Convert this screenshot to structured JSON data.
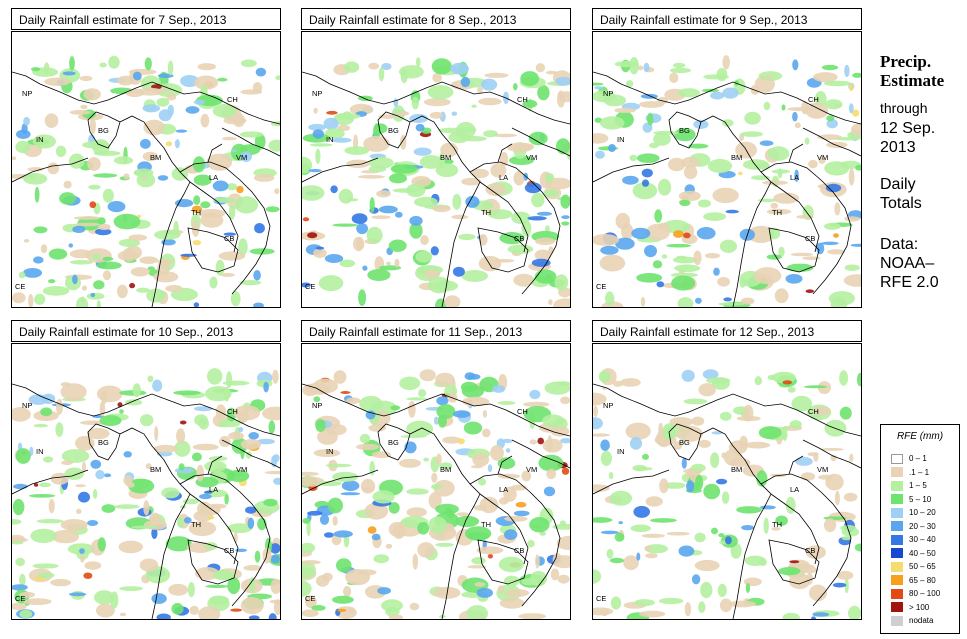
{
  "panels": [
    {
      "title": "Daily Rainfall estimate for  7 Sep., 2013",
      "seed": 7,
      "rain_fraction": 0.55
    },
    {
      "title": "Daily Rainfall estimate for  8 Sep., 2013",
      "seed": 8,
      "rain_fraction": 0.55
    },
    {
      "title": "Daily Rainfall estimate for  9 Sep., 2013",
      "seed": 9,
      "rain_fraction": 0.5
    },
    {
      "title": "Daily Rainfall estimate for  10 Sep., 2013",
      "seed": 10,
      "rain_fraction": 0.6
    },
    {
      "title": "Daily Rainfall estimate for  11 Sep., 2013",
      "seed": 11,
      "rain_fraction": 0.6
    },
    {
      "title": "Daily Rainfall estimate for  12 Sep., 2013",
      "seed": 12,
      "rain_fraction": 0.45
    }
  ],
  "country_labels": [
    "NP",
    "CH",
    "IN",
    "BG",
    "BM",
    "VM",
    "LA",
    "TH",
    "CB",
    "CE"
  ],
  "sidebar": {
    "title_line1": "Precip.",
    "title_line2": "Estimate",
    "through": "through",
    "date_line1": "12 Sep.",
    "date_line2": "2013",
    "daily_line1": "Daily",
    "daily_line2": "Totals",
    "data_line1": "Data:",
    "data_line2": "NOAA–",
    "data_line3": "RFE 2.0"
  },
  "legend": {
    "title": "RFE (mm)",
    "items": [
      {
        "label": "0 – 1",
        "color": "#ffffff"
      },
      {
        "label": ".1 – 1",
        "color": "#e8d3b5"
      },
      {
        "label": "1 – 5",
        "color": "#b4f0a0"
      },
      {
        "label": "5 – 10",
        "color": "#6ee36e"
      },
      {
        "label": "10 – 20",
        "color": "#9ecff5"
      },
      {
        "label": "20 – 30",
        "color": "#5aa6ee"
      },
      {
        "label": "30 – 40",
        "color": "#3478e6"
      },
      {
        "label": "40 – 50",
        "color": "#1648d0"
      },
      {
        "label": "50 – 65",
        "color": "#f6dc6e"
      },
      {
        "label": "65 – 80",
        "color": "#f6a01e"
      },
      {
        "label": "80 – 100",
        "color": "#e04a14"
      },
      {
        "label": "> 100",
        "color": "#a0140e"
      },
      {
        "label": "nodata",
        "color": "#cfcfcf"
      }
    ]
  }
}
